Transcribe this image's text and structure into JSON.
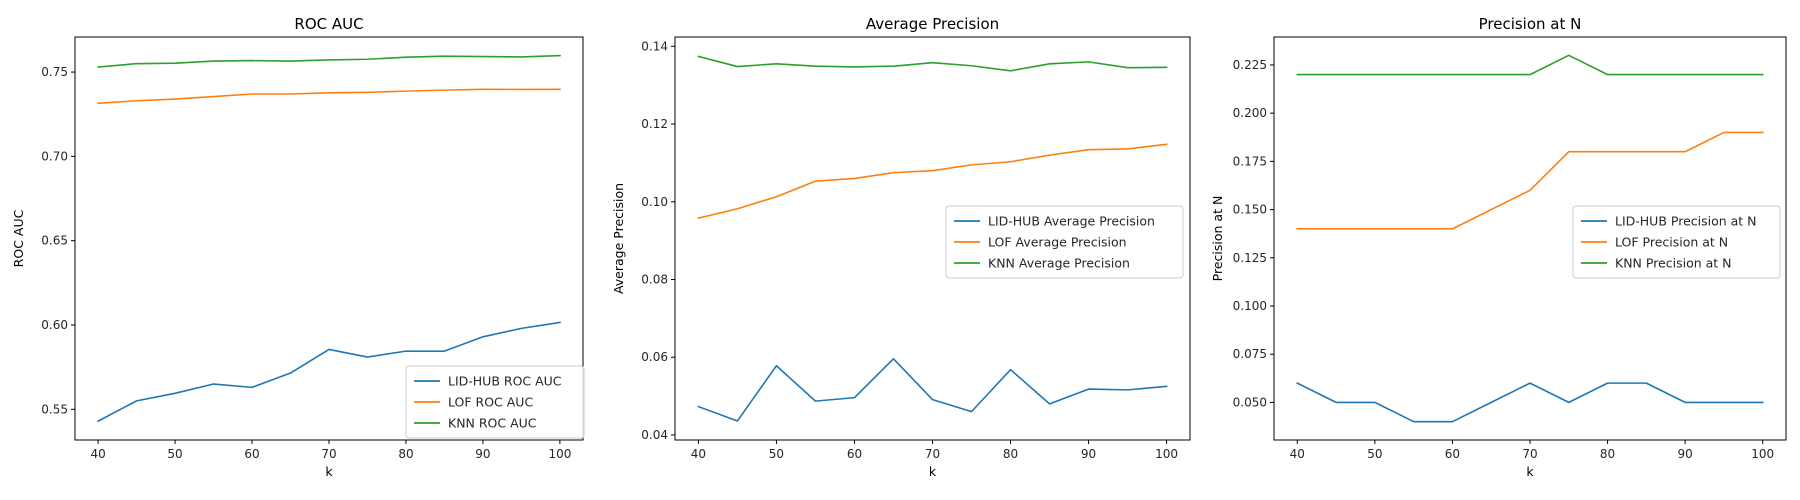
{
  "colors": {
    "lid_hub": "#1f77b4",
    "lof": "#ff7f0e",
    "knn": "#2ca02c"
  },
  "chart_data": [
    {
      "type": "line",
      "title": "ROC AUC",
      "xlabel": "k",
      "ylabel": "ROC AUC",
      "xlim": [
        37,
        103
      ],
      "ylim": [
        0.5318,
        0.7708
      ],
      "x_ticks": [
        40,
        50,
        60,
        70,
        80,
        90,
        100
      ],
      "y_ticks": [
        0.55,
        0.6,
        0.65,
        0.7,
        0.75
      ],
      "y_tick_labels": [
        "0.55",
        "0.60",
        "0.65",
        "0.70",
        "0.75"
      ],
      "legend_position": "lower right",
      "x": [
        40,
        45,
        50,
        55,
        60,
        65,
        70,
        75,
        80,
        85,
        90,
        95,
        100
      ],
      "series": [
        {
          "name": "LID-HUB ROC AUC",
          "color": "#1f77b4",
          "values": [
            0.543,
            0.555,
            0.5595,
            0.565,
            0.563,
            0.5715,
            0.5855,
            0.581,
            0.5845,
            0.5845,
            0.593,
            0.598,
            0.6015
          ]
        },
        {
          "name": "LOF ROC AUC",
          "color": "#ff7f0e",
          "values": [
            0.7315,
            0.733,
            0.734,
            0.7355,
            0.737,
            0.737,
            0.7377,
            0.738,
            0.7387,
            0.7393,
            0.7398,
            0.7397,
            0.7398
          ]
        },
        {
          "name": "KNN ROC AUC",
          "color": "#2ca02c",
          "values": [
            0.753,
            0.755,
            0.7553,
            0.7565,
            0.7568,
            0.7565,
            0.7572,
            0.7576,
            0.7588,
            0.7594,
            0.7592,
            0.759,
            0.7598
          ]
        }
      ]
    },
    {
      "type": "line",
      "title": "Average Precision",
      "xlabel": "k",
      "ylabel": "Average Precision",
      "xlim": [
        37,
        103
      ],
      "ylim": [
        0.0387,
        0.1424
      ],
      "x_ticks": [
        40,
        50,
        60,
        70,
        80,
        90,
        100
      ],
      "y_ticks": [
        0.04,
        0.06,
        0.08,
        0.1,
        0.12,
        0.14
      ],
      "y_tick_labels": [
        "0.04",
        "0.06",
        "0.08",
        "0.10",
        "0.12",
        "0.14"
      ],
      "legend_position": "center right",
      "x": [
        40,
        45,
        50,
        55,
        60,
        65,
        70,
        75,
        80,
        85,
        90,
        95,
        100
      ],
      "series": [
        {
          "name": "LID-HUB Average Precision",
          "color": "#1f77b4",
          "values": [
            0.0473,
            0.0436,
            0.0578,
            0.0487,
            0.0496,
            0.0596,
            0.0491,
            0.046,
            0.0568,
            0.048,
            0.0518,
            0.0516,
            0.0525
          ]
        },
        {
          "name": "LOF Average Precision",
          "color": "#ff7f0e",
          "values": [
            0.0958,
            0.0982,
            0.1013,
            0.1053,
            0.106,
            0.1075,
            0.108,
            0.1095,
            0.1103,
            0.112,
            0.1134,
            0.1136,
            0.1148
          ]
        },
        {
          "name": "KNN Average Precision",
          "color": "#2ca02c",
          "values": [
            0.1374,
            0.1348,
            0.1355,
            0.1349,
            0.1347,
            0.1349,
            0.1358,
            0.135,
            0.1337,
            0.1355,
            0.136,
            0.1345,
            0.1346
          ]
        }
      ]
    },
    {
      "type": "line",
      "title": "Precision at N",
      "xlabel": "k",
      "ylabel": "Precision at N",
      "xlim": [
        37,
        103
      ],
      "ylim": [
        0.0305,
        0.2395
      ],
      "x_ticks": [
        40,
        50,
        60,
        70,
        80,
        90,
        100
      ],
      "y_ticks": [
        0.05,
        0.075,
        0.1,
        0.125,
        0.15,
        0.175,
        0.2,
        0.225
      ],
      "y_tick_labels": [
        "0.050",
        "0.075",
        "0.100",
        "0.125",
        "0.150",
        "0.175",
        "0.200",
        "0.225"
      ],
      "legend_position": "center right",
      "x": [
        40,
        45,
        50,
        55,
        60,
        65,
        70,
        75,
        80,
        85,
        90,
        95,
        100
      ],
      "series": [
        {
          "name": "LID-HUB Precision at N",
          "color": "#1f77b4",
          "values": [
            0.06,
            0.05,
            0.05,
            0.04,
            0.04,
            0.05,
            0.06,
            0.05,
            0.06,
            0.06,
            0.05,
            0.05,
            0.05
          ]
        },
        {
          "name": "LOF Precision at N",
          "color": "#ff7f0e",
          "values": [
            0.14,
            0.14,
            0.14,
            0.14,
            0.14,
            0.15,
            0.16,
            0.18,
            0.18,
            0.18,
            0.18,
            0.19,
            0.19
          ]
        },
        {
          "name": "KNN Precision at N",
          "color": "#2ca02c",
          "values": [
            0.22,
            0.22,
            0.22,
            0.22,
            0.22,
            0.22,
            0.22,
            0.23,
            0.22,
            0.22,
            0.22,
            0.22,
            0.22
          ]
        }
      ]
    }
  ]
}
